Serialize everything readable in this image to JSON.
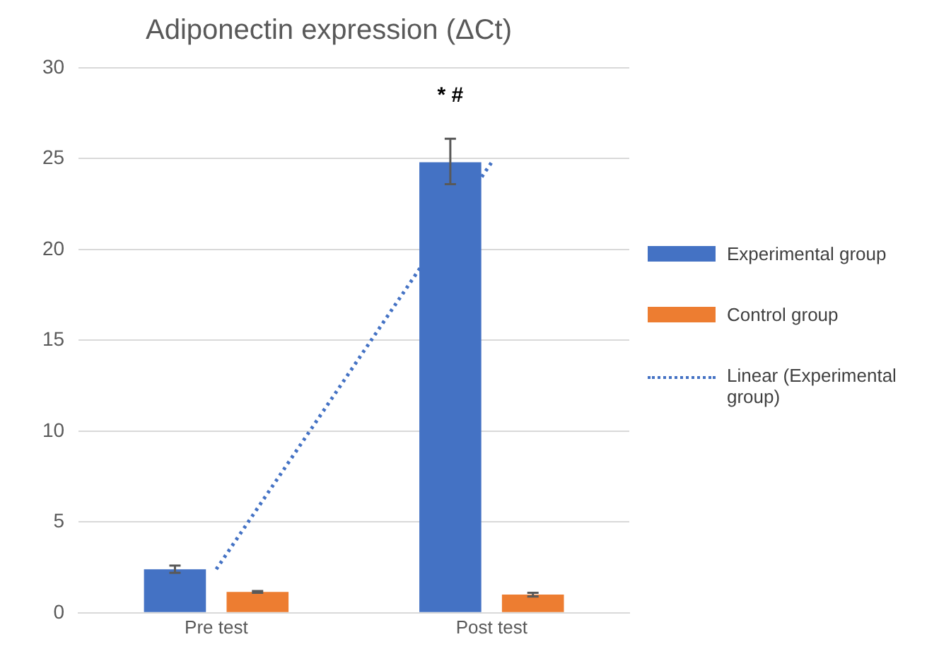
{
  "chart_data": {
    "type": "bar",
    "title": "Adiponectin expression (ΔCt)",
    "categories": [
      "Pre test",
      "Post test"
    ],
    "series": [
      {
        "name": "Experimental group",
        "color": "#4472c4",
        "values": [
          2.4,
          24.8
        ],
        "errors": [
          0.2,
          [
            23.6,
            26.1
          ]
        ]
      },
      {
        "name": "Control group",
        "color": "#ed7d31",
        "values": [
          1.15,
          1.0
        ],
        "errors": [
          0.05,
          0.1
        ]
      },
      {
        "name": "Linear (Experimental group)",
        "type": "line",
        "color": "#4472c4",
        "line_style": "dotted",
        "marker": "none",
        "x": [
          "Pre test",
          "Post test"
        ],
        "values": [
          2.4,
          24.8
        ]
      }
    ],
    "ylim": [
      0,
      30
    ],
    "yticks": [
      0,
      5,
      10,
      15,
      20,
      25,
      30
    ],
    "grid": "y",
    "legend": "right",
    "annotations": [
      "* #"
    ]
  }
}
